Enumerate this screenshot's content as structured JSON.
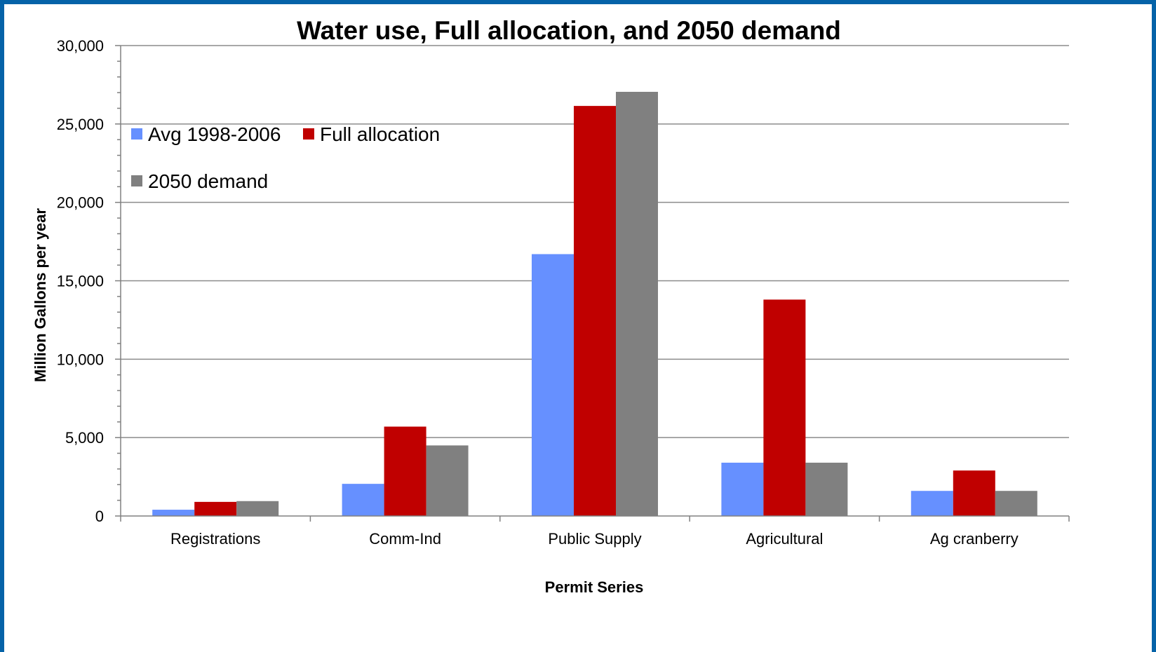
{
  "colors": {
    "frame": "#0563a8",
    "grid": "#8c8c8c",
    "series": [
      "#6690ff",
      "#c00000",
      "#808080"
    ]
  },
  "chart_data": {
    "type": "bar",
    "title": "Water use, Full allocation, and 2050 demand",
    "xlabel": "Permit Series",
    "ylabel": "Million Gallons per year",
    "ylim": [
      0,
      30000
    ],
    "yticks": [
      0,
      5000,
      10000,
      15000,
      20000,
      25000,
      30000
    ],
    "ytick_labels": [
      "0",
      "5,000",
      "10,000",
      "15,000",
      "20,000",
      "25,000",
      "30,000"
    ],
    "grid": true,
    "legend_position": "upper-left, inside plot",
    "categories": [
      "Registrations",
      "Comm-Ind",
      "Public Supply",
      "Agricultural",
      "Ag cranberry"
    ],
    "series": [
      {
        "name": "Avg 1998-2006",
        "values": [
          400,
          2050,
          16700,
          3400,
          1600
        ]
      },
      {
        "name": "Full allocation",
        "values": [
          900,
          5700,
          26150,
          13800,
          2900
        ]
      },
      {
        "name": "2050 demand",
        "values": [
          950,
          4500,
          27050,
          3400,
          1600
        ]
      }
    ]
  }
}
